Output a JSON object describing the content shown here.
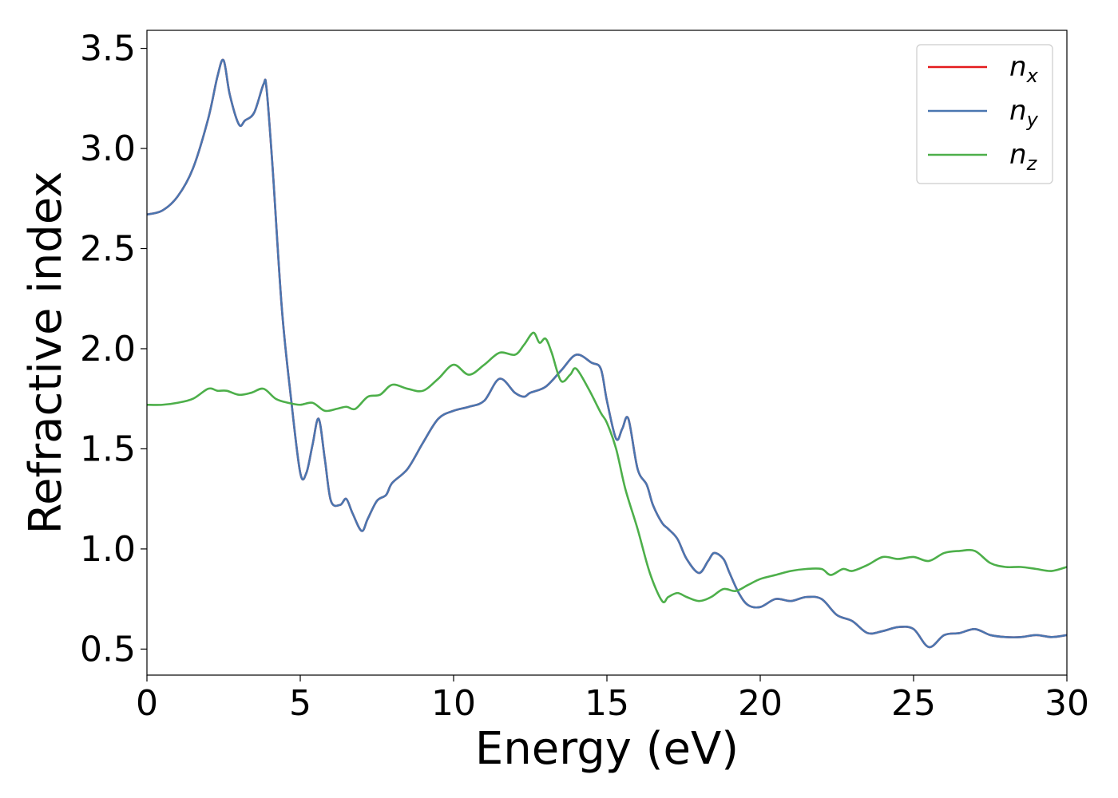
{
  "chart_data": {
    "type": "line",
    "xlabel": "Energy (eV)",
    "ylabel": "Refractive index",
    "xlim": [
      0,
      30
    ],
    "ylim": [
      0.37,
      3.59
    ],
    "xticks": [
      "0",
      "5",
      "10",
      "15",
      "20",
      "25",
      "30"
    ],
    "yticks": [
      "0.5",
      "1.0",
      "1.5",
      "2.0",
      "2.5",
      "3.0",
      "3.5"
    ],
    "grid": false,
    "legend_position": "top-right",
    "series": [
      {
        "name": "n_x",
        "legend_base": "n",
        "legend_sub": "x",
        "color": "#e41a1c",
        "x": [
          0,
          0.5,
          1,
          1.5,
          2,
          2.3,
          2.5,
          2.7,
          3,
          3.2,
          3.5,
          3.8,
          3.9,
          4.1,
          4.4,
          4.7,
          5,
          5.2,
          5.4,
          5.6,
          5.8,
          6,
          6.3,
          6.5,
          6.7,
          7,
          7.2,
          7.5,
          7.8,
          8,
          8.5,
          9,
          9.5,
          10,
          10.5,
          11,
          11.5,
          12,
          12.3,
          12.5,
          13,
          13.5,
          14,
          14.5,
          14.8,
          15,
          15.3,
          15.5,
          15.7,
          16,
          16.3,
          16.5,
          16.8,
          17,
          17.3,
          17.6,
          18,
          18.3,
          18.5,
          18.8,
          19,
          19.3,
          19.6,
          20,
          20.5,
          21,
          21.5,
          22,
          22.5,
          23,
          23.5,
          24,
          24.5,
          25,
          25.5,
          26,
          26.5,
          27,
          27.5,
          28,
          28.5,
          29,
          29.5,
          30
        ],
        "y": [
          2.67,
          2.69,
          2.76,
          2.9,
          3.15,
          3.36,
          3.44,
          3.27,
          3.12,
          3.14,
          3.18,
          3.32,
          3.3,
          2.9,
          2.2,
          1.75,
          1.38,
          1.38,
          1.52,
          1.65,
          1.45,
          1.24,
          1.22,
          1.25,
          1.18,
          1.09,
          1.15,
          1.24,
          1.27,
          1.33,
          1.4,
          1.53,
          1.65,
          1.69,
          1.71,
          1.74,
          1.85,
          1.78,
          1.76,
          1.78,
          1.81,
          1.89,
          1.97,
          1.93,
          1.9,
          1.74,
          1.55,
          1.6,
          1.65,
          1.4,
          1.32,
          1.22,
          1.13,
          1.1,
          1.05,
          0.95,
          0.88,
          0.94,
          0.98,
          0.95,
          0.88,
          0.78,
          0.72,
          0.71,
          0.75,
          0.74,
          0.76,
          0.75,
          0.67,
          0.64,
          0.58,
          0.59,
          0.61,
          0.6,
          0.51,
          0.57,
          0.58,
          0.6,
          0.57,
          0.56,
          0.56,
          0.57,
          0.56,
          0.57
        ]
      },
      {
        "name": "n_y",
        "legend_base": "n",
        "legend_sub": "y",
        "color": "#4a76b0",
        "x": [
          0,
          0.5,
          1,
          1.5,
          2,
          2.3,
          2.5,
          2.7,
          3,
          3.2,
          3.5,
          3.8,
          3.9,
          4.1,
          4.4,
          4.7,
          5,
          5.2,
          5.4,
          5.6,
          5.8,
          6,
          6.3,
          6.5,
          6.7,
          7,
          7.2,
          7.5,
          7.8,
          8,
          8.5,
          9,
          9.5,
          10,
          10.5,
          11,
          11.5,
          12,
          12.3,
          12.5,
          13,
          13.5,
          14,
          14.5,
          14.8,
          15,
          15.3,
          15.5,
          15.7,
          16,
          16.3,
          16.5,
          16.8,
          17,
          17.3,
          17.6,
          18,
          18.3,
          18.5,
          18.8,
          19,
          19.3,
          19.6,
          20,
          20.5,
          21,
          21.5,
          22,
          22.5,
          23,
          23.5,
          24,
          24.5,
          25,
          25.5,
          26,
          26.5,
          27,
          27.5,
          28,
          28.5,
          29,
          29.5,
          30
        ],
        "y": [
          2.67,
          2.69,
          2.76,
          2.9,
          3.15,
          3.36,
          3.44,
          3.27,
          3.12,
          3.14,
          3.18,
          3.32,
          3.3,
          2.9,
          2.2,
          1.75,
          1.38,
          1.38,
          1.52,
          1.65,
          1.45,
          1.24,
          1.22,
          1.25,
          1.18,
          1.09,
          1.15,
          1.24,
          1.27,
          1.33,
          1.4,
          1.53,
          1.65,
          1.69,
          1.71,
          1.74,
          1.85,
          1.78,
          1.76,
          1.78,
          1.81,
          1.89,
          1.97,
          1.93,
          1.9,
          1.74,
          1.55,
          1.6,
          1.65,
          1.4,
          1.32,
          1.22,
          1.13,
          1.1,
          1.05,
          0.95,
          0.88,
          0.94,
          0.98,
          0.95,
          0.88,
          0.78,
          0.72,
          0.71,
          0.75,
          0.74,
          0.76,
          0.75,
          0.67,
          0.64,
          0.58,
          0.59,
          0.61,
          0.6,
          0.51,
          0.57,
          0.58,
          0.6,
          0.57,
          0.56,
          0.56,
          0.57,
          0.56,
          0.57
        ]
      },
      {
        "name": "n_z",
        "legend_base": "n",
        "legend_sub": "z",
        "color": "#4daf4a",
        "x": [
          0,
          0.5,
          1,
          1.5,
          2,
          2.3,
          2.6,
          3,
          3.4,
          3.8,
          4.2,
          4.6,
          5,
          5.4,
          5.8,
          6.2,
          6.5,
          6.8,
          7.2,
          7.6,
          8,
          8.5,
          9,
          9.5,
          10,
          10.5,
          11,
          11.5,
          12,
          12.3,
          12.6,
          12.8,
          13,
          13.2,
          13.5,
          13.8,
          14,
          14.4,
          14.8,
          15,
          15.3,
          15.6,
          16,
          16.4,
          16.8,
          17,
          17.3,
          17.6,
          18,
          18.4,
          18.8,
          19.2,
          19.6,
          20,
          20.5,
          21,
          21.5,
          22,
          22.3,
          22.7,
          23,
          23.5,
          24,
          24.5,
          25,
          25.5,
          26,
          26.5,
          27,
          27.5,
          28,
          28.5,
          29,
          29.5,
          30
        ],
        "y": [
          1.72,
          1.72,
          1.73,
          1.75,
          1.8,
          1.79,
          1.79,
          1.77,
          1.78,
          1.8,
          1.75,
          1.73,
          1.72,
          1.73,
          1.69,
          1.7,
          1.71,
          1.7,
          1.76,
          1.77,
          1.82,
          1.8,
          1.79,
          1.85,
          1.92,
          1.87,
          1.92,
          1.98,
          1.97,
          2.02,
          2.08,
          2.03,
          2.05,
          1.98,
          1.84,
          1.87,
          1.9,
          1.8,
          1.68,
          1.63,
          1.5,
          1.3,
          1.1,
          0.88,
          0.74,
          0.76,
          0.78,
          0.76,
          0.74,
          0.76,
          0.8,
          0.79,
          0.82,
          0.85,
          0.87,
          0.89,
          0.9,
          0.9,
          0.87,
          0.9,
          0.89,
          0.92,
          0.96,
          0.95,
          0.96,
          0.94,
          0.98,
          0.99,
          0.99,
          0.93,
          0.91,
          0.91,
          0.9,
          0.89,
          0.91
        ]
      }
    ]
  }
}
